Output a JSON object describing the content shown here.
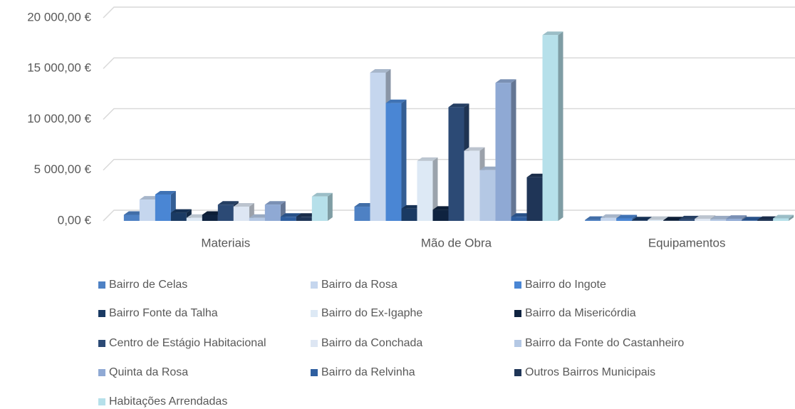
{
  "chart_data": {
    "type": "bar3d",
    "categories": [
      "Materiais",
      "Mão de Obra",
      "Equipamentos"
    ],
    "ylim": [
      0,
      20000
    ],
    "yticks": [
      {
        "value": 0,
        "label": "0,00 €"
      },
      {
        "value": 5000,
        "label": "5 000,00 €"
      },
      {
        "value": 10000,
        "label": "10 000,00 €"
      },
      {
        "value": 15000,
        "label": "15 000,00 €"
      },
      {
        "value": 20000,
        "label": "20 000,00 €"
      }
    ],
    "grid": true,
    "legend": "bottom",
    "series": [
      {
        "name": "Bairro de Celas",
        "color": "#4e81c4",
        "values": [
          600,
          1400,
          100
        ]
      },
      {
        "name": "Bairro da Rosa",
        "color": "#c5d6ee",
        "values": [
          2100,
          14600,
          300
        ]
      },
      {
        "name": "Bairro do Ingote",
        "color": "#4a86d4",
        "values": [
          2600,
          11600,
          250
        ]
      },
      {
        "name": "Bairro Fonte da Talha",
        "color": "#1a3a63",
        "values": [
          800,
          1200,
          50
        ]
      },
      {
        "name": "Bairro do Ex-Igaphe",
        "color": "#dde9f5",
        "values": [
          300,
          5900,
          100
        ]
      },
      {
        "name": "Bairro da Misericórdia",
        "color": "#0f2340",
        "values": [
          600,
          1100,
          50
        ]
      },
      {
        "name": "Centro de Estágio Habitacional",
        "color": "#2c4a75",
        "values": [
          1600,
          11200,
          150
        ]
      },
      {
        "name": "Bairro da Conchada",
        "color": "#dde6f3",
        "values": [
          1400,
          6900,
          200
        ]
      },
      {
        "name": "Bairro da Fonte do Castanheiro",
        "color": "#b4c8e4",
        "values": [
          300,
          5000,
          150
        ]
      },
      {
        "name": "Quinta da Rosa",
        "color": "#8fa9d4",
        "values": [
          1600,
          13600,
          200
        ]
      },
      {
        "name": "Bairro da Relvinha",
        "color": "#2f5fa0",
        "values": [
          400,
          400,
          50
        ]
      },
      {
        "name": "Outros Bairros Municipais",
        "color": "#1f3557",
        "values": [
          400,
          4300,
          100
        ]
      },
      {
        "name": "Habitações Arrendadas",
        "color": "#b6e0ea",
        "values": [
          2400,
          18300,
          250
        ]
      }
    ]
  }
}
